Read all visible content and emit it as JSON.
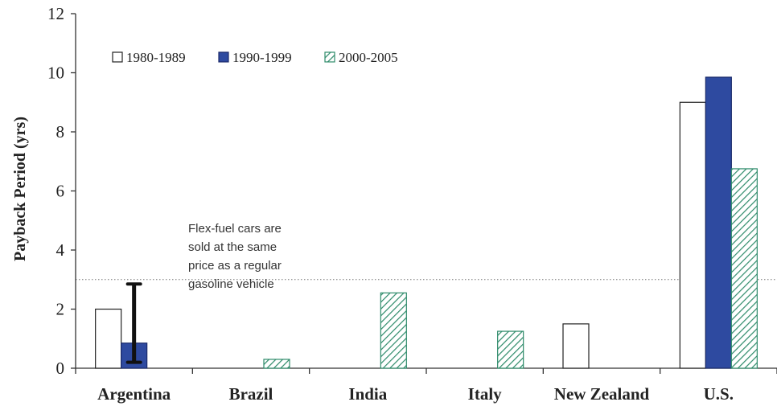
{
  "chart_data": {
    "type": "bar",
    "title": "",
    "xlabel": "",
    "ylabel": "Payback Period (yrs)",
    "ylim": [
      0,
      12
    ],
    "yticks": [
      0,
      2,
      4,
      6,
      8,
      10,
      12
    ],
    "categories": [
      "Argentina",
      "Brazil",
      "India",
      "Italy",
      "New Zealand",
      "U.S."
    ],
    "series": [
      {
        "name": "1980-1989",
        "color": "#ffffff",
        "pattern": "solid-outline",
        "values": [
          2.0,
          null,
          null,
          null,
          1.5,
          9.0
        ]
      },
      {
        "name": "1990-1999",
        "color": "#2e4aa0",
        "pattern": "solid",
        "values": [
          0.85,
          null,
          null,
          null,
          null,
          9.85
        ]
      },
      {
        "name": "2000-2005",
        "color": "#2e8b6a",
        "pattern": "hatched",
        "values": [
          null,
          0.3,
          2.55,
          1.25,
          null,
          6.75
        ]
      }
    ],
    "error_bars": [
      {
        "category": "Argentina",
        "series": "1990-1999",
        "low": 0.2,
        "high": 2.85
      }
    ],
    "reference_line": {
      "y": 3.0,
      "style": "dotted"
    },
    "annotation": [
      "Flex-fuel cars are",
      "sold at the same",
      "price as a regular",
      "gasoline vehicle"
    ],
    "legend_position": "top-left",
    "grid": false
  }
}
